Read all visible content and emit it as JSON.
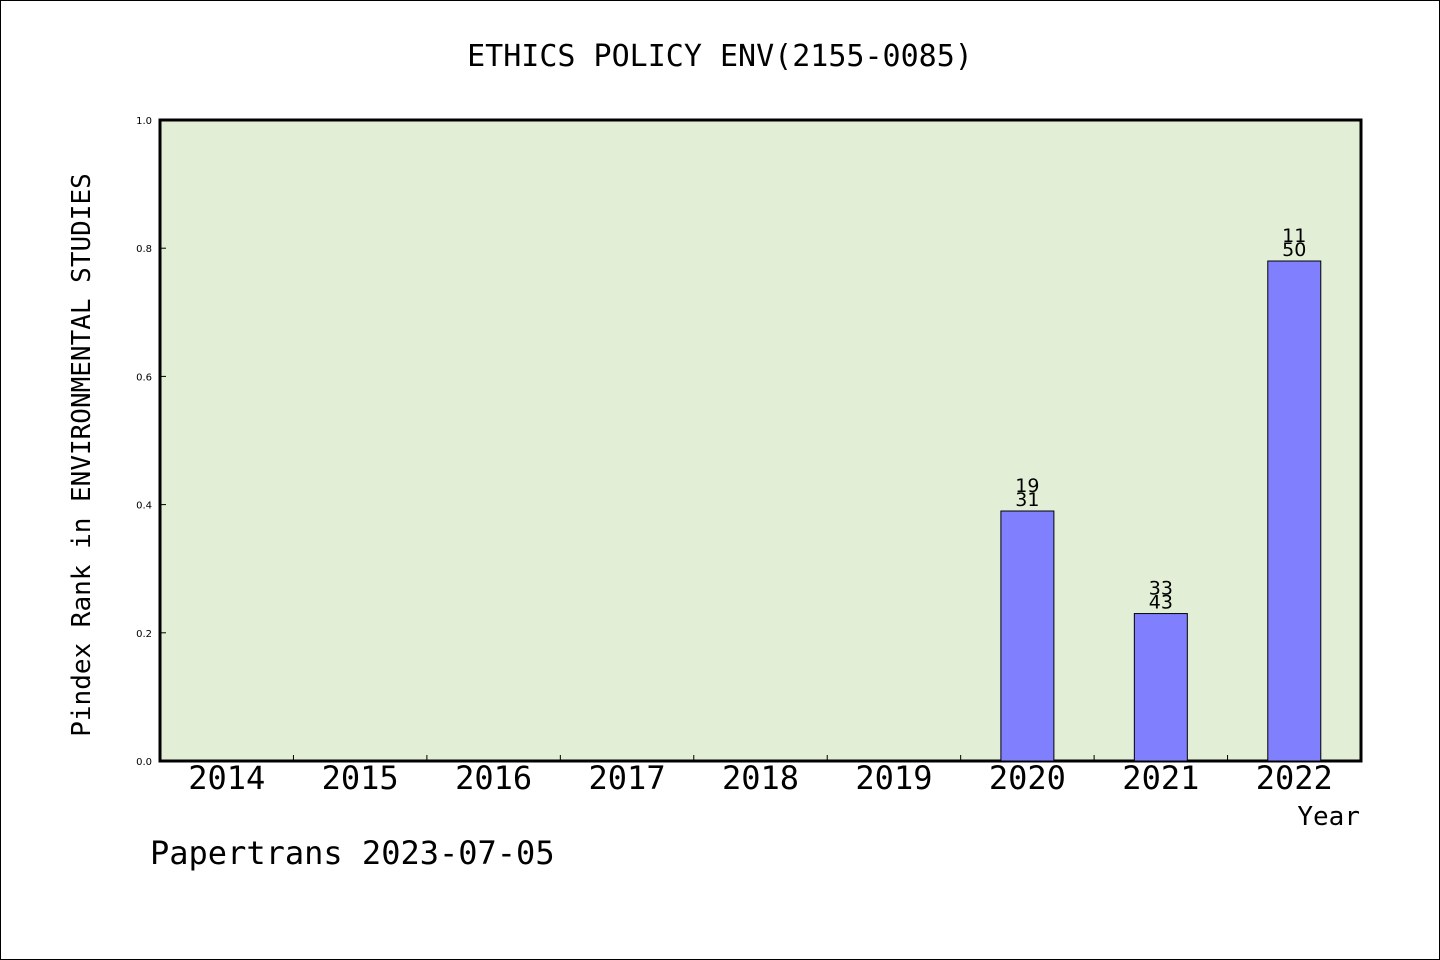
{
  "chart_data": {
    "type": "bar",
    "title": "ETHICS POLICY ENV(2155-0085)",
    "ylabel": "Pindex Rank in ENVIRONMENTAL STUDIES",
    "xlabel": "Year",
    "footer": "Papertrans 2023-07-05",
    "categories": [
      "2014",
      "2015",
      "2016",
      "2017",
      "2018",
      "2019",
      "2020",
      "2021",
      "2022"
    ],
    "values": [
      null,
      null,
      null,
      null,
      null,
      null,
      0.39,
      0.23,
      0.78
    ],
    "bar_labels": [
      null,
      null,
      null,
      null,
      null,
      null,
      {
        "top": "19",
        "bottom": "31"
      },
      {
        "top": "33",
        "bottom": "43"
      },
      {
        "top": "11",
        "bottom": "50"
      }
    ],
    "ylim": [
      0,
      1
    ],
    "yticks": [
      "0.0",
      "0.2",
      "0.4",
      "0.6",
      "0.8",
      "1.0"
    ],
    "grid": false,
    "colors": {
      "plot_background": "#e2efd6",
      "bar_fill": "#8080ff",
      "bar_stroke": "#000000",
      "axis": "#000000"
    }
  }
}
